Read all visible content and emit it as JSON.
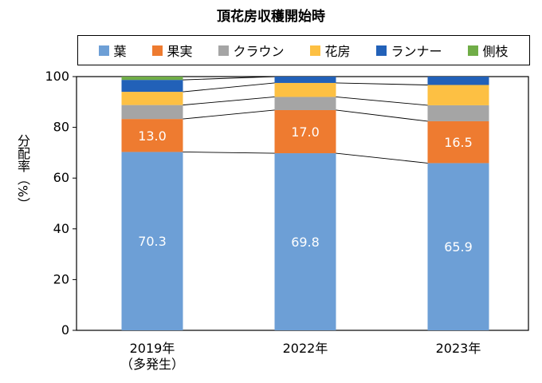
{
  "chart_data": {
    "type": "bar",
    "stacked": true,
    "title": "頂花房収穫開始時",
    "ylabel": "分配率（%）",
    "ylim": [
      0,
      100
    ],
    "yticks": [
      0,
      20,
      40,
      60,
      80,
      100
    ],
    "categories": [
      [
        "2019年",
        "（多発生）"
      ],
      [
        "2022年"
      ],
      [
        "2023年"
      ]
    ],
    "legend_position": "top",
    "series": [
      {
        "name": "葉",
        "color": "#6d9fd6",
        "values": [
          70.3,
          69.8,
          65.9
        ],
        "labels": [
          "70.3",
          "69.8",
          "65.9"
        ]
      },
      {
        "name": "果実",
        "color": "#ee7b30",
        "values": [
          13.0,
          17.0,
          16.5
        ],
        "labels": [
          "13.0",
          "17.0",
          "16.5"
        ]
      },
      {
        "name": "クラウン",
        "color": "#a5a5a5",
        "values": [
          5.5,
          5.2,
          6.3
        ],
        "labels": [
          "",
          "",
          ""
        ]
      },
      {
        "name": "花房",
        "color": "#fdc043",
        "values": [
          5.2,
          5.5,
          8.0
        ],
        "labels": [
          "",
          "",
          ""
        ]
      },
      {
        "name": "ランナー",
        "color": "#2261b8",
        "values": [
          4.7,
          2.5,
          3.3
        ],
        "labels": [
          "",
          "",
          ""
        ]
      },
      {
        "name": "側枝",
        "color": "#70ad47",
        "values": [
          1.3,
          0.0,
          0.0
        ],
        "labels": [
          "",
          "",
          ""
        ]
      }
    ]
  }
}
